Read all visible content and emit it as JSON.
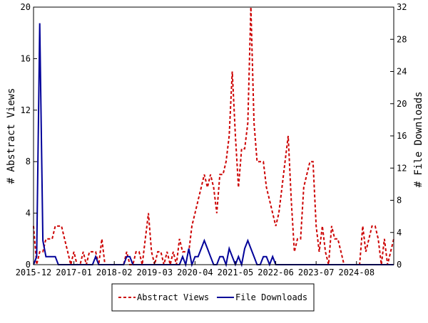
{
  "chart_data": {
    "type": "line",
    "xlabel": "",
    "ylabel_left": "# Abstract Views",
    "ylabel_right": "# File Downloads",
    "ylim_left": [
      0,
      20
    ],
    "ylim_right": [
      0,
      32
    ],
    "yticks_left": [
      0,
      4,
      8,
      12,
      16,
      20
    ],
    "yticks_right": [
      0,
      4,
      8,
      12,
      16,
      20,
      24,
      28,
      32
    ],
    "x_start": "2015-12",
    "x_end": "2025-08",
    "x_tick_labels": [
      "2015-12",
      "2017-01",
      "2018-02",
      "2019-03",
      "2020-04",
      "2021-05",
      "2022-06",
      "2023-07",
      "2024-08"
    ],
    "grid": false,
    "legend_position": "bottom",
    "series": [
      {
        "name": "Abstract Views",
        "axis": "left",
        "color": "#cc0000",
        "style": "dashed",
        "x": [
          "2015-12",
          "2016-01",
          "2016-02",
          "2016-03",
          "2016-04",
          "2016-05",
          "2016-06",
          "2016-07",
          "2016-08",
          "2016-09",
          "2016-10",
          "2016-11",
          "2016-12",
          "2017-01",
          "2017-02",
          "2017-03",
          "2017-04",
          "2017-05",
          "2017-06",
          "2017-07",
          "2017-08",
          "2017-09",
          "2017-10",
          "2017-11",
          "2017-12",
          "2018-01",
          "2018-02",
          "2018-03",
          "2018-04",
          "2018-05",
          "2018-06",
          "2018-07",
          "2018-08",
          "2018-09",
          "2018-10",
          "2018-11",
          "2018-12",
          "2019-01",
          "2019-02",
          "2019-03",
          "2019-04",
          "2019-05",
          "2019-06",
          "2019-07",
          "2019-08",
          "2019-09",
          "2019-10",
          "2019-11",
          "2019-12",
          "2020-01",
          "2020-02",
          "2020-03",
          "2020-04",
          "2020-05",
          "2020-06",
          "2020-07",
          "2020-08",
          "2020-09",
          "2020-10",
          "2020-11",
          "2020-12",
          "2021-01",
          "2021-02",
          "2021-03",
          "2021-04",
          "2021-05",
          "2021-06",
          "2021-07",
          "2021-08",
          "2021-09",
          "2021-10",
          "2021-11",
          "2021-12",
          "2022-01",
          "2022-02",
          "2022-03",
          "2022-04",
          "2022-05",
          "2022-06",
          "2022-07",
          "2022-08",
          "2022-09",
          "2022-10",
          "2022-11",
          "2022-12",
          "2023-01",
          "2023-02",
          "2023-03",
          "2023-04",
          "2023-05",
          "2023-06",
          "2023-07",
          "2023-08",
          "2023-09",
          "2023-10",
          "2023-11",
          "2023-12",
          "2024-01",
          "2024-02",
          "2024-03",
          "2024-04",
          "2024-05",
          "2024-06",
          "2024-07",
          "2024-08",
          "2024-09",
          "2024-10",
          "2024-11",
          "2024-12",
          "2025-01",
          "2025-02",
          "2025-03",
          "2025-04",
          "2025-05",
          "2025-06",
          "2025-07",
          "2025-08"
        ],
        "values": [
          3,
          0,
          1,
          1,
          2,
          2,
          2,
          3,
          3,
          3,
          2,
          1,
          0,
          1,
          0,
          0,
          1,
          0,
          1,
          1,
          1,
          0,
          2,
          0,
          0,
          0,
          0,
          0,
          0,
          0,
          1,
          0,
          0,
          1,
          1,
          0,
          2,
          4,
          1,
          0,
          1,
          1,
          0,
          1,
          0,
          1,
          0,
          2,
          1,
          1,
          1,
          3,
          4,
          5,
          6,
          7,
          6,
          7,
          6,
          4,
          7,
          7,
          8,
          10,
          15,
          10,
          6,
          9,
          9,
          11,
          20,
          11,
          8,
          8,
          8,
          6,
          5,
          4,
          3,
          4,
          6,
          8,
          10,
          5,
          1,
          2,
          2,
          6,
          7,
          8,
          8,
          3,
          1,
          3,
          1,
          0,
          3,
          2,
          2,
          1,
          0,
          0,
          0,
          0,
          0,
          0,
          3,
          1,
          2,
          3,
          3,
          2,
          0,
          2,
          0,
          1,
          2
        ],
        "note": "monthly abstract views (approximate)"
      },
      {
        "name": "File Downloads",
        "axis": "right",
        "color": "#000099",
        "style": "solid",
        "x": [
          "2015-12",
          "2016-01",
          "2016-02",
          "2016-03",
          "2016-04",
          "2016-05",
          "2016-06",
          "2016-07",
          "2016-08",
          "2016-09",
          "2016-10",
          "2016-11",
          "2016-12",
          "2017-01",
          "2017-02",
          "2017-03",
          "2017-04",
          "2017-05",
          "2017-06",
          "2017-07",
          "2017-08",
          "2017-09",
          "2017-10",
          "2017-11",
          "2017-12",
          "2018-01",
          "2018-02",
          "2018-03",
          "2018-04",
          "2018-05",
          "2018-06",
          "2018-07",
          "2018-08",
          "2018-09",
          "2018-10",
          "2018-11",
          "2018-12",
          "2019-01",
          "2019-02",
          "2019-03",
          "2019-04",
          "2019-05",
          "2019-06",
          "2019-07",
          "2019-08",
          "2019-09",
          "2019-10",
          "2019-11",
          "2019-12",
          "2020-01",
          "2020-02",
          "2020-03",
          "2020-04",
          "2020-05",
          "2020-06",
          "2020-07",
          "2020-08",
          "2020-09",
          "2020-10",
          "2020-11",
          "2020-12",
          "2021-01",
          "2021-02",
          "2021-03",
          "2021-04",
          "2021-05",
          "2021-06",
          "2021-07",
          "2021-08",
          "2021-09",
          "2021-10",
          "2021-11",
          "2021-12",
          "2022-01",
          "2022-02",
          "2022-03",
          "2022-04",
          "2022-05",
          "2022-06",
          "2022-07",
          "2022-08",
          "2022-09",
          "2022-10",
          "2022-11",
          "2022-12",
          "2023-01",
          "2023-02",
          "2023-03",
          "2023-04",
          "2023-05",
          "2023-06",
          "2023-07",
          "2023-08",
          "2023-09",
          "2023-10",
          "2023-11",
          "2023-12",
          "2024-01",
          "2024-02",
          "2024-03",
          "2024-04",
          "2024-05",
          "2024-06",
          "2024-07",
          "2024-08",
          "2024-09",
          "2024-10",
          "2024-11",
          "2024-12",
          "2025-01",
          "2025-02",
          "2025-03",
          "2025-04",
          "2025-05",
          "2025-06",
          "2025-07",
          "2025-08"
        ],
        "values": [
          0,
          1,
          30,
          3,
          1,
          1,
          1,
          1,
          0,
          0,
          0,
          0,
          0,
          0,
          0,
          0,
          0,
          0,
          0,
          0,
          1,
          0,
          0,
          0,
          0,
          0,
          0,
          0,
          0,
          0,
          1,
          1,
          0,
          0,
          0,
          0,
          0,
          0,
          0,
          0,
          0,
          0,
          0,
          0,
          0,
          0,
          0,
          0,
          1,
          0,
          2,
          0,
          1,
          1,
          2,
          3,
          2,
          1,
          0,
          0,
          1,
          1,
          0,
          2,
          1,
          0,
          1,
          0,
          2,
          3,
          2,
          1,
          0,
          0,
          1,
          1,
          0,
          1,
          0,
          0,
          0,
          0,
          0,
          0,
          0,
          0,
          0,
          0,
          0,
          0,
          0,
          0,
          0,
          0,
          0,
          0,
          0,
          0,
          0,
          0,
          0,
          0,
          0,
          0,
          0,
          0,
          0,
          0,
          0,
          0,
          0,
          0,
          0,
          0,
          0,
          0,
          0
        ],
        "note": "monthly file downloads (approximate)"
      }
    ]
  }
}
